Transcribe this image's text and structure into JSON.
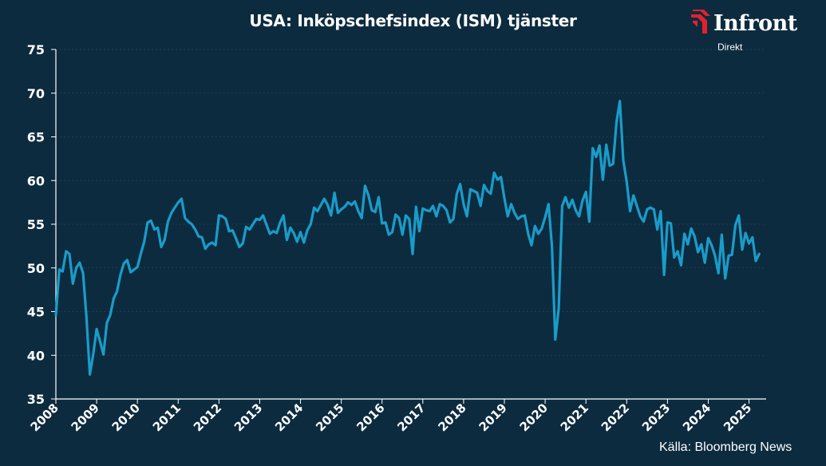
{
  "title": "USA: Inköpschefsindex (ISM) tjänster",
  "logo": {
    "word": "Infront",
    "sub": "Direkt"
  },
  "source": "Källa: Bloomberg News",
  "colors": {
    "background": "#0c2b3f",
    "line": "#1a9cc9",
    "logo_red": "#e4202e",
    "axis": "#ffffff"
  },
  "chart_data": {
    "type": "line",
    "title": "USA: Inköpschefsindex (ISM) tjänster",
    "xlabel": "",
    "ylabel": "",
    "ylim": [
      35,
      75
    ],
    "xlim": [
      2008,
      2025.42
    ],
    "yticks": [
      35,
      40,
      45,
      50,
      55,
      60,
      65,
      70,
      75
    ],
    "xticks": [
      "2008",
      "2009",
      "2010",
      "2011",
      "2012",
      "2013",
      "2014",
      "2015",
      "2016",
      "2017",
      "2018",
      "2019",
      "2020",
      "2021",
      "2022",
      "2023",
      "2024",
      "2025"
    ],
    "grid": true,
    "legend": "none",
    "series": [
      {
        "x_start": 2008.0,
        "x_step_years": 0.08333,
        "values": [
          44.6,
          49.8,
          49.6,
          51.9,
          51.6,
          48.2,
          50.0,
          50.6,
          49.4,
          44.4,
          37.8,
          40.1,
          43.0,
          41.6,
          40.1,
          43.7,
          44.6,
          46.5,
          47.3,
          49.2,
          50.5,
          50.9,
          49.5,
          49.8,
          50.1,
          51.6,
          53.0,
          55.2,
          55.4,
          54.4,
          54.6,
          52.4,
          53.2,
          55.3,
          56.3,
          56.9,
          57.5,
          57.9,
          55.7,
          55.3,
          55.0,
          54.4,
          53.6,
          53.5,
          52.2,
          52.7,
          52.9,
          52.6,
          56.0,
          55.9,
          55.6,
          54.2,
          54.3,
          53.4,
          52.4,
          52.8,
          54.7,
          54.4,
          55.0,
          55.6,
          55.5,
          56.0,
          54.9,
          53.9,
          54.2,
          54.0,
          55.2,
          56.0,
          53.2,
          54.6,
          54.0,
          53.0,
          54.1,
          52.9,
          54.3,
          55.0,
          56.9,
          56.5,
          57.2,
          57.9,
          57.2,
          56.0,
          58.6,
          56.3,
          56.7,
          57.0,
          57.5,
          57.2,
          57.6,
          56.5,
          55.7,
          59.4,
          58.3,
          56.6,
          56.4,
          58.1,
          55.1,
          55.2,
          53.8,
          54.1,
          56.1,
          55.7,
          53.8,
          56.0,
          55.6,
          51.6,
          57.0,
          54.2,
          56.8,
          56.6,
          56.5,
          57.1,
          55.9,
          57.3,
          57.1,
          56.6,
          55.2,
          55.6,
          58.5,
          59.6,
          57.3,
          55.9,
          59.0,
          58.8,
          58.6,
          57.1,
          59.5,
          58.8,
          58.5,
          60.9,
          60.1,
          60.4,
          58.0,
          55.9,
          57.3,
          56.3,
          55.6,
          55.9,
          56.0,
          53.9,
          52.6,
          54.8,
          53.9,
          54.5,
          55.8,
          57.3,
          52.5,
          41.8,
          45.4,
          57.1,
          58.1,
          56.9,
          57.8,
          56.6,
          55.9,
          57.7,
          58.7,
          55.3,
          63.7,
          62.7,
          64.0,
          60.1,
          64.1,
          61.7,
          61.9,
          66.7,
          69.1,
          62.3,
          59.9,
          56.5,
          58.3,
          57.1,
          55.9,
          55.3,
          56.7,
          56.9,
          56.7,
          54.4,
          56.5,
          49.2,
          55.2,
          55.1,
          51.2,
          51.9,
          50.3,
          53.9,
          52.7,
          54.5,
          53.6,
          51.8,
          52.7,
          50.6,
          53.4,
          52.6,
          51.4,
          49.4,
          53.8,
          48.8,
          51.4,
          51.5,
          54.9,
          56.0,
          52.1,
          54.0,
          52.8,
          53.5,
          50.8,
          51.6
        ]
      }
    ]
  }
}
